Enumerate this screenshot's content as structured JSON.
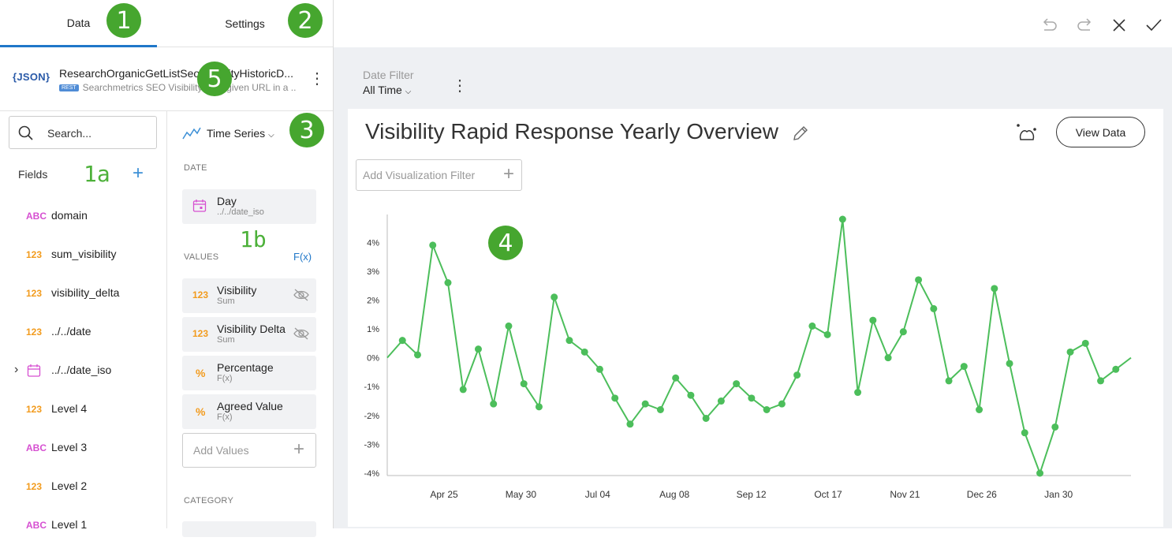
{
  "tabs": {
    "data": "Data",
    "settings": "Settings"
  },
  "badges": {
    "b1": "1",
    "b2": "2",
    "b3": "3",
    "b4": "4",
    "b5": "5",
    "b1a": "1a",
    "b1b": "1b"
  },
  "source": {
    "logo": "{JSON}",
    "title": "ResearchOrganicGetListSeoVisibilityHistoricD...",
    "tag": "REST",
    "subtitle": "Searchmetrics SEO Visibility for a given URL in a ..."
  },
  "search": {
    "placeholder": "Search..."
  },
  "fields": {
    "label": "Fields",
    "items": [
      {
        "type": "ABC",
        "name": "domain"
      },
      {
        "type": "123",
        "name": "sum_visibility"
      },
      {
        "type": "123",
        "name": "visibility_delta"
      },
      {
        "type": "123",
        "name": "../../date"
      },
      {
        "type": "date",
        "name": "../../date_iso"
      },
      {
        "type": "123",
        "name": "Level 4"
      },
      {
        "type": "ABC",
        "name": "Level 3"
      },
      {
        "type": "123",
        "name": "Level 2"
      },
      {
        "type": "ABC",
        "name": "Level 1"
      }
    ]
  },
  "viz": {
    "type_label": "Time Series",
    "date_header": "DATE",
    "date_field": {
      "title": "Day",
      "sub": "../../date_iso"
    },
    "values_header": "VALUES",
    "fx_label": "F(x)",
    "values": [
      {
        "icon": "123",
        "title": "Visibility",
        "sub": "Sum"
      },
      {
        "icon": "123",
        "title": "Visibility Delta",
        "sub": "Sum"
      },
      {
        "icon": "%",
        "title": "Percentage",
        "sub": "F(x)"
      },
      {
        "icon": "%",
        "title": "Agreed Value",
        "sub": "F(x)"
      }
    ],
    "add_values": "Add Values",
    "category_header": "CATEGORY"
  },
  "dashboard": {
    "date_filter_label": "Date Filter",
    "date_filter_value": "All Time",
    "title": "Visibility Rapid Response Yearly Overview",
    "view_data": "View Data",
    "add_filter": "Add Visualization Filter"
  },
  "colors": {
    "accent": "#1f77c9",
    "line": "#4cbe5b",
    "badge": "#46a62f"
  },
  "chart_data": {
    "type": "line",
    "ylim": [
      -4,
      4.8
    ],
    "y_ticks": [
      "4%",
      "3%",
      "2%",
      "1%",
      "0%",
      "-1%",
      "-2%",
      "-3%",
      "-4%"
    ],
    "x_ticks": [
      "Apr 25",
      "May 30",
      "Jul 04",
      "Aug 08",
      "Sep 12",
      "Oct 17",
      "Nov 21",
      "Dec 26",
      "Jan 30"
    ],
    "series": [
      {
        "values": [
          0.0,
          0.6,
          0.1,
          3.9,
          2.6,
          -1.1,
          0.3,
          -1.6,
          1.1,
          -0.9,
          -1.7,
          2.1,
          0.6,
          0.2,
          -0.4,
          -1.4,
          -2.3,
          -1.6,
          -1.8,
          -0.7,
          -1.3,
          -2.1,
          -1.5,
          -0.9,
          -1.4,
          -1.8,
          -1.6,
          -0.6,
          1.1,
          0.8,
          4.8,
          -1.2,
          1.3,
          0.0,
          0.9,
          2.7,
          1.7,
          -0.8,
          -0.3,
          -1.8,
          2.4,
          -0.2,
          -2.6,
          -4.0,
          -2.4,
          0.2,
          0.5,
          -0.8,
          -0.4,
          0.0
        ]
      }
    ]
  }
}
